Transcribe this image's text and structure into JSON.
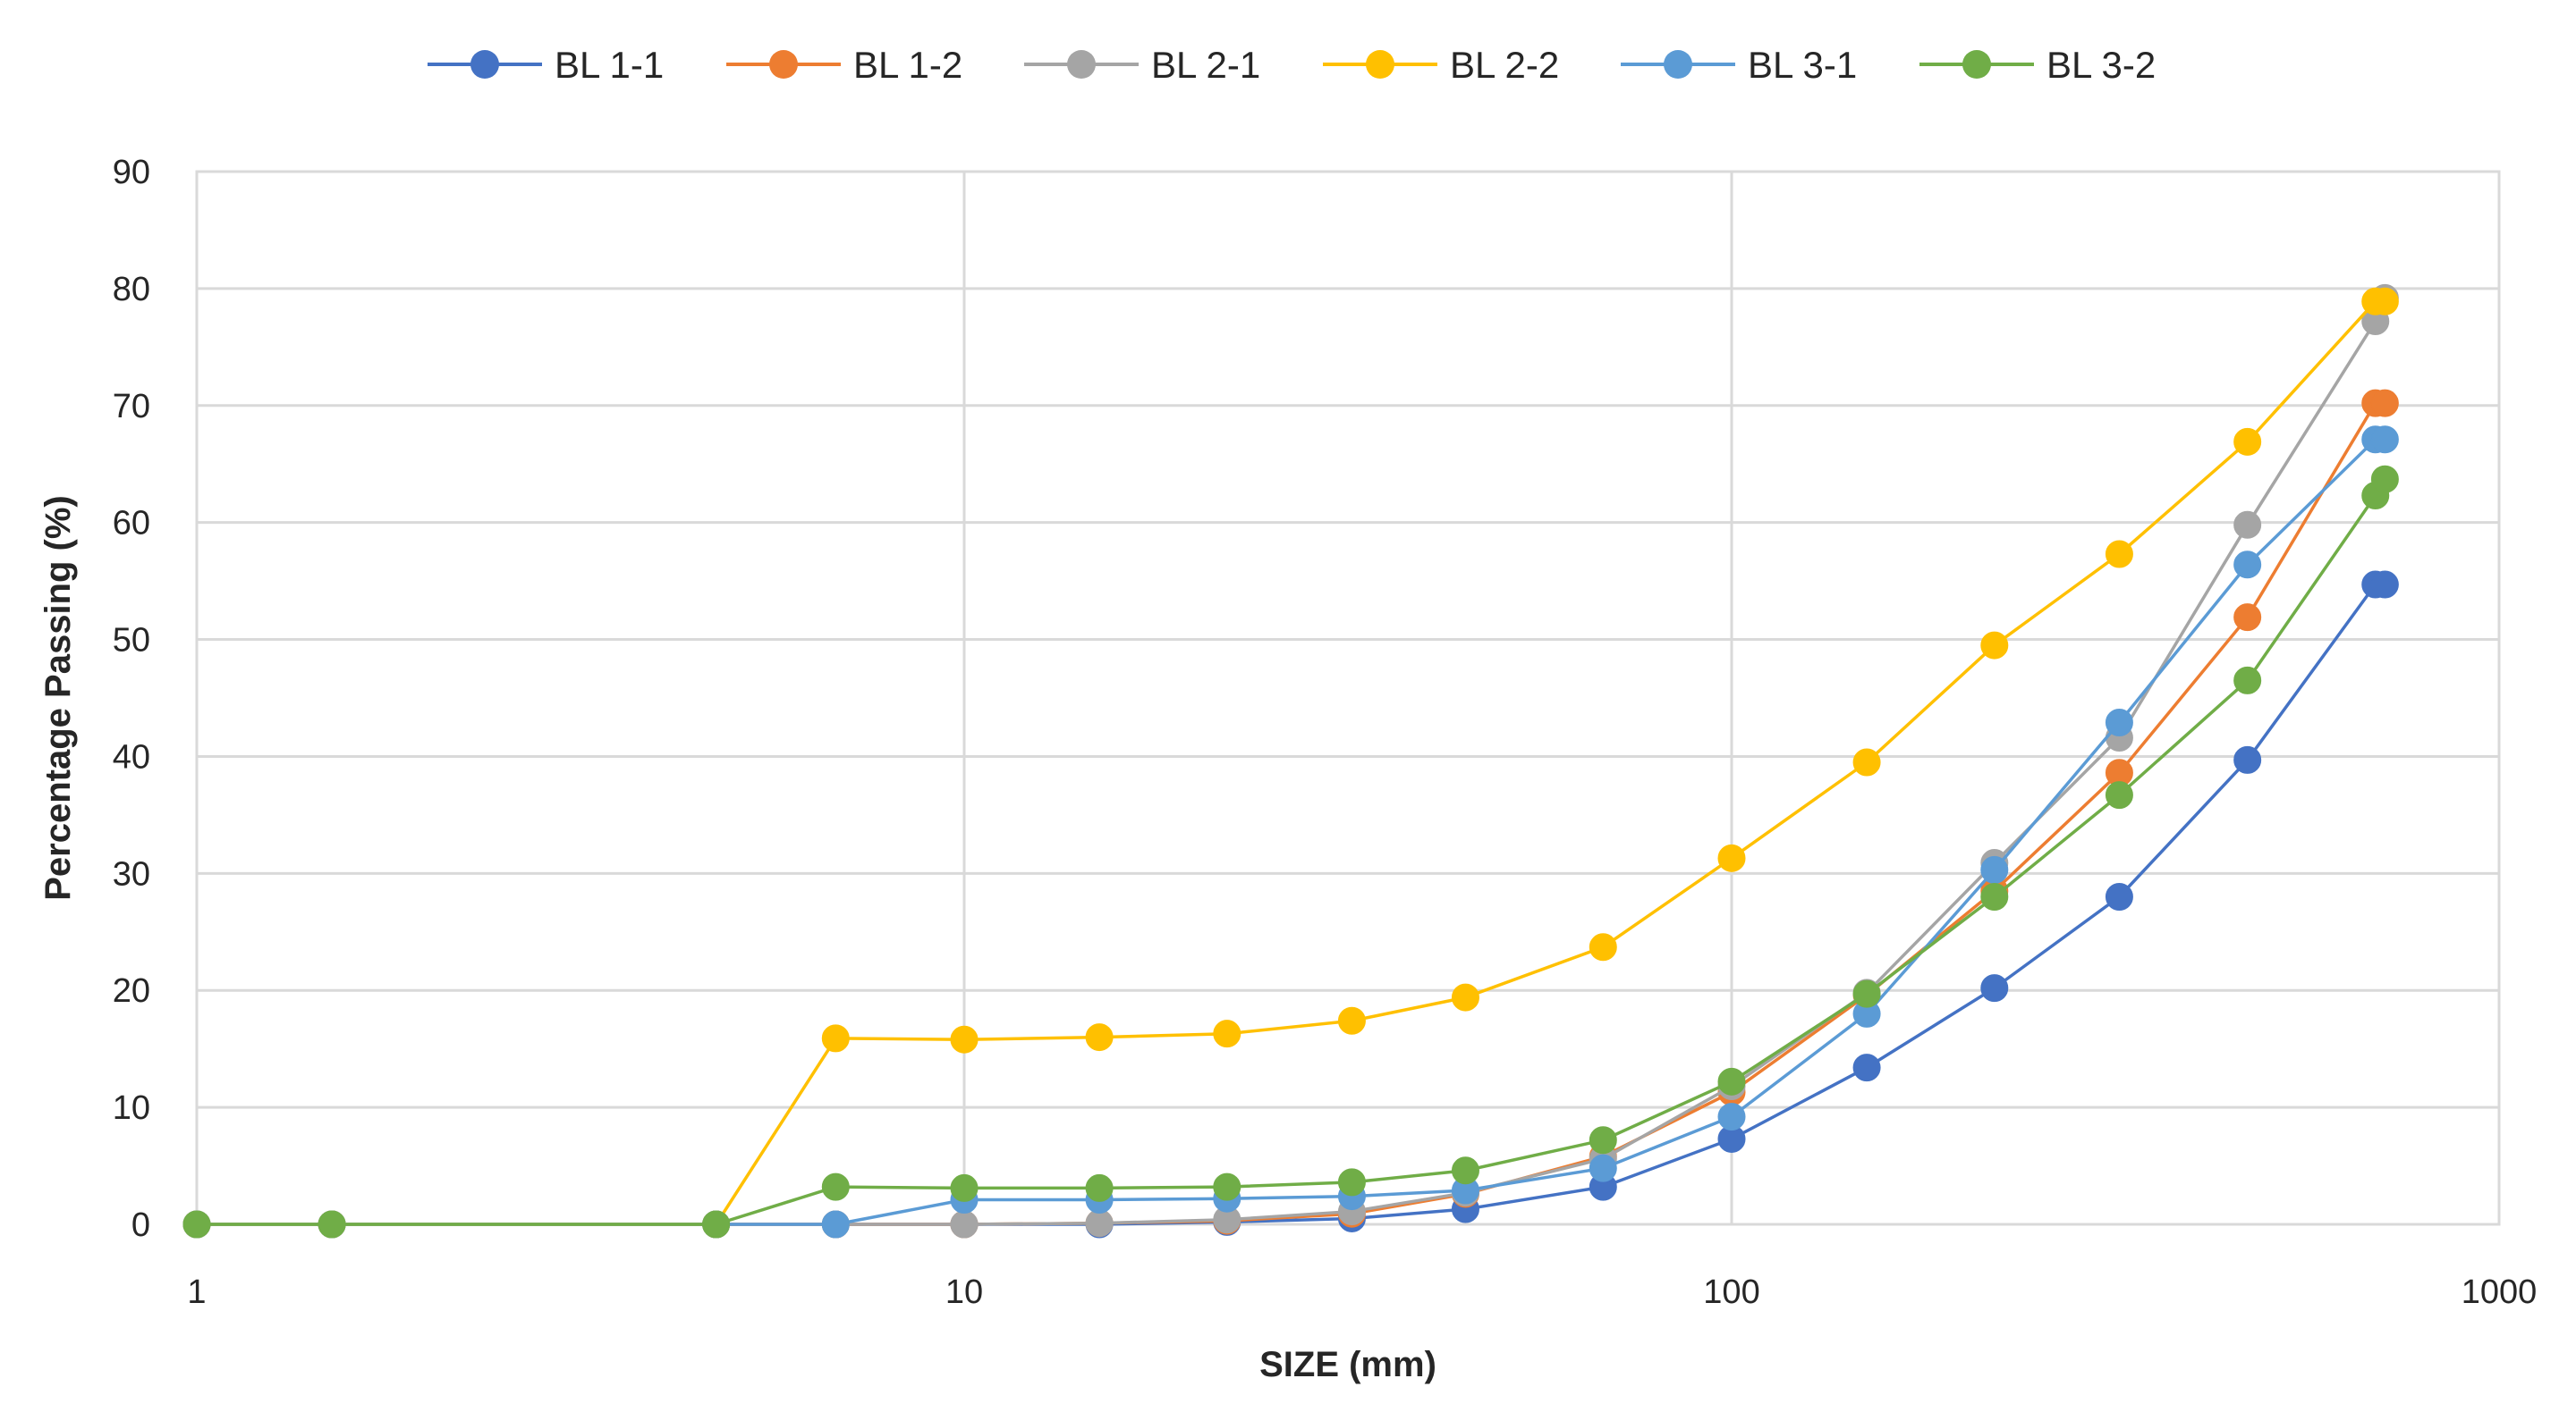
{
  "chart_data": {
    "type": "line",
    "title": "",
    "xlabel": "SIZE (mm)",
    "ylabel": "Percentage Passing (%)",
    "xscale": "log",
    "xlim": [
      1,
      1000
    ],
    "ylim": [
      0,
      90
    ],
    "xticks": [
      "1",
      "10",
      "100",
      "1000"
    ],
    "yticks": [
      "0",
      "10",
      "20",
      "30",
      "40",
      "50",
      "60",
      "70",
      "80",
      "90"
    ],
    "grid": true,
    "legend_position": "top",
    "series": [
      {
        "name": "BL 1-1",
        "color": "#4472C4",
        "x": [
          1,
          1.5,
          4.75,
          6.8,
          10,
          15,
          22,
          32,
          45,
          68,
          100,
          150,
          220,
          320,
          470,
          690,
          710
        ],
        "y": [
          0,
          0,
          0,
          0,
          0,
          0,
          0.2,
          0.5,
          1.3,
          3.2,
          7.3,
          13.4,
          20.2,
          28.0,
          39.7,
          54.7,
          54.7
        ]
      },
      {
        "name": "BL 1-2",
        "color": "#ED7D31",
        "x": [
          1,
          1.5,
          4.75,
          6.8,
          10,
          15,
          22,
          32,
          45,
          68,
          100,
          150,
          220,
          320,
          470,
          690,
          710
        ],
        "y": [
          0,
          0,
          0,
          0,
          0,
          0.1,
          0.3,
          0.9,
          2.6,
          5.8,
          11.3,
          19.6,
          28.5,
          38.6,
          51.9,
          70.2,
          70.2
        ]
      },
      {
        "name": "BL 2-1",
        "color": "#A5A5A5",
        "x": [
          1,
          1.5,
          4.75,
          6.8,
          10,
          15,
          22,
          32,
          45,
          68,
          100,
          150,
          220,
          320,
          470,
          690,
          710
        ],
        "y": [
          0,
          0,
          0,
          0,
          0,
          0.1,
          0.4,
          1.1,
          2.7,
          5.6,
          11.8,
          19.8,
          30.9,
          41.6,
          59.8,
          77.2,
          79.2
        ]
      },
      {
        "name": "BL 2-2",
        "color": "#FFC000",
        "x": [
          1,
          1.5,
          4.75,
          6.8,
          10,
          15,
          22,
          32,
          45,
          68,
          100,
          150,
          220,
          320,
          470,
          690,
          710
        ],
        "y": [
          0,
          0,
          0,
          15.9,
          15.8,
          16.0,
          16.3,
          17.4,
          19.4,
          23.7,
          31.3,
          39.5,
          49.5,
          57.3,
          66.9,
          78.9,
          78.9
        ]
      },
      {
        "name": "BL 3-1",
        "color": "#5B9BD5",
        "x": [
          1,
          1.5,
          4.75,
          6.8,
          10,
          15,
          22,
          32,
          45,
          68,
          100,
          150,
          220,
          320,
          470,
          690,
          710
        ],
        "y": [
          0,
          0,
          0,
          0,
          2.1,
          2.1,
          2.2,
          2.4,
          2.9,
          4.8,
          9.2,
          18.0,
          30.3,
          42.9,
          56.4,
          67.1,
          67.1
        ]
      },
      {
        "name": "BL 3-2",
        "color": "#70AD47",
        "x": [
          1,
          1.5,
          4.75,
          6.8,
          10,
          15,
          22,
          32,
          45,
          68,
          100,
          150,
          220,
          320,
          470,
          690,
          710
        ],
        "y": [
          0,
          0,
          0,
          3.2,
          3.1,
          3.1,
          3.2,
          3.6,
          4.6,
          7.2,
          12.2,
          19.7,
          28.0,
          36.7,
          46.5,
          62.3,
          63.7
        ]
      }
    ]
  }
}
